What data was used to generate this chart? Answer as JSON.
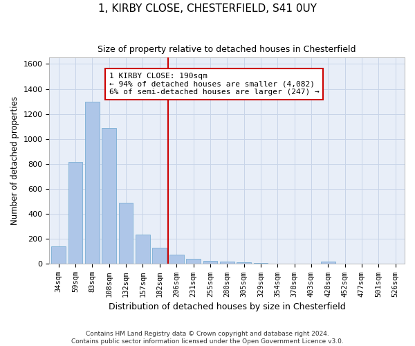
{
  "title1": "1, KIRBY CLOSE, CHESTERFIELD, S41 0UY",
  "title2": "Size of property relative to detached houses in Chesterfield",
  "xlabel": "Distribution of detached houses by size in Chesterfield",
  "ylabel": "Number of detached properties",
  "categories": [
    "34sqm",
    "59sqm",
    "83sqm",
    "108sqm",
    "132sqm",
    "157sqm",
    "182sqm",
    "206sqm",
    "231sqm",
    "255sqm",
    "280sqm",
    "305sqm",
    "329sqm",
    "354sqm",
    "378sqm",
    "403sqm",
    "428sqm",
    "452sqm",
    "477sqm",
    "501sqm",
    "526sqm"
  ],
  "values": [
    140,
    815,
    1295,
    1090,
    490,
    235,
    130,
    75,
    40,
    25,
    20,
    15,
    10,
    5,
    5,
    0,
    20,
    0,
    0,
    0,
    0
  ],
  "bar_color": "#aec6e8",
  "bar_edge_color": "#7aafd4",
  "property_line_x": 6.5,
  "annotation_line1": "1 KIRBY CLOSE: 190sqm",
  "annotation_line2": "← 94% of detached houses are smaller (4,082)",
  "annotation_line3": "6% of semi-detached houses are larger (247) →",
  "annotation_box_color": "#ffffff",
  "annotation_box_edge": "#cc0000",
  "vline_color": "#cc0000",
  "grid_color": "#c8d4e8",
  "background_color": "#e8eef8",
  "fig_background": "#ffffff",
  "ylim": [
    0,
    1650
  ],
  "yticks": [
    0,
    200,
    400,
    600,
    800,
    1000,
    1200,
    1400,
    1600
  ],
  "footnote1": "Contains HM Land Registry data © Crown copyright and database right 2024.",
  "footnote2": "Contains public sector information licensed under the Open Government Licence v3.0."
}
